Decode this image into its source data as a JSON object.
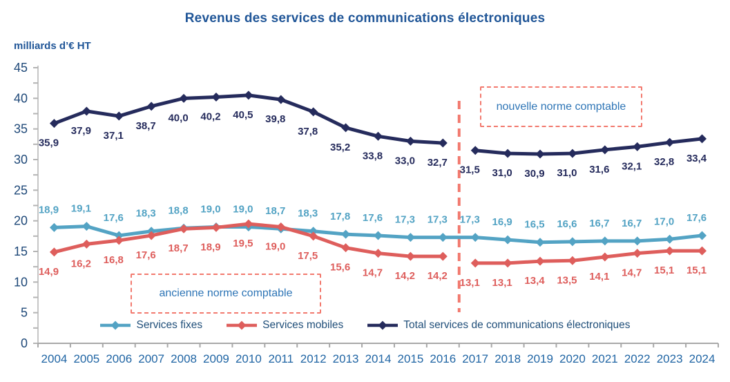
{
  "chart_data": {
    "type": "line",
    "title": "Revenus des services de communications électroniques",
    "unit_label": "milliards d’€ HT",
    "decimal_separator": ",",
    "x": [
      2004,
      2005,
      2006,
      2007,
      2008,
      2009,
      2010,
      2011,
      2012,
      2013,
      2014,
      2015,
      2016,
      2017,
      2018,
      2019,
      2020,
      2021,
      2022,
      2023,
      2024
    ],
    "ylim": [
      0,
      45
    ],
    "y_tick_step": 5,
    "y_minor_tick_step": 2.5,
    "grid": "off",
    "legend_position": "bottom",
    "series": [
      {
        "name": "Services fixes",
        "color": "#53A3C4",
        "marker": "diamond",
        "label_position": "above",
        "break_after_year": null,
        "values": [
          18.9,
          19.1,
          17.6,
          18.3,
          18.8,
          19.0,
          19.0,
          18.7,
          18.3,
          17.8,
          17.6,
          17.3,
          17.3,
          17.3,
          16.9,
          16.5,
          16.6,
          16.7,
          16.7,
          17.0,
          17.6
        ]
      },
      {
        "name": "Services mobiles",
        "color": "#DE5E5C",
        "marker": "diamond",
        "label_position": "below",
        "break_after_year": 2016,
        "values": [
          14.9,
          16.2,
          16.8,
          17.6,
          18.7,
          18.9,
          19.5,
          19.0,
          17.5,
          15.6,
          14.7,
          14.2,
          14.2,
          13.1,
          13.1,
          13.4,
          13.5,
          14.1,
          14.7,
          15.1,
          15.1
        ]
      },
      {
        "name": "Total services de communications électroniques",
        "color": "#252B5C",
        "marker": "diamond",
        "label_position": "below",
        "break_after_year": 2016,
        "values": [
          35.9,
          37.9,
          37.1,
          38.7,
          40.0,
          40.2,
          40.5,
          39.8,
          37.8,
          35.2,
          33.8,
          33.0,
          32.7,
          31.5,
          31.0,
          30.9,
          31.0,
          31.6,
          32.1,
          32.8,
          33.4
        ]
      }
    ],
    "separator": {
      "between_years": [
        2016,
        2017
      ],
      "style": "dashed",
      "color": "#F2796E"
    },
    "annotations": [
      {
        "text": "ancienne norme comptable",
        "side": "left"
      },
      {
        "text": "nouvelle norme comptable",
        "side": "right"
      }
    ]
  },
  "colors": {
    "title_text": "#1F5597",
    "unit_text": "#1F5597",
    "y_axis_text": "#1E4878",
    "x_axis_text": "#2065A4",
    "legend_text": "#1F4E79",
    "annotation_text": "#2E75B6",
    "annotation_border": "#F2796E",
    "axis_line": "#A8A8A8",
    "y_axis_line": "#C6C6C6",
    "tick": "#B3B3B3"
  }
}
